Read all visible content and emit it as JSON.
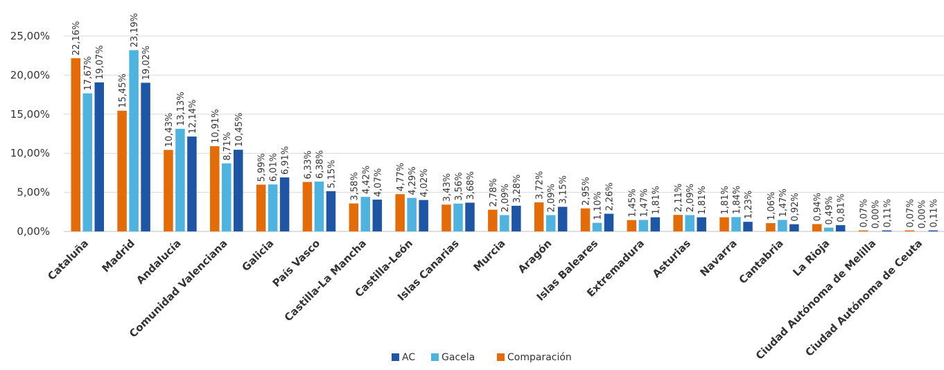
{
  "chart_data": {
    "type": "bar",
    "categories": [
      "Cataluña",
      "Madrid",
      "Andalucía",
      "Comunidad Valenciana",
      "Galicia",
      "País Vasco",
      "Castilla-La Mancha",
      "Castilla-León",
      "Islas Canarias",
      "Murcia",
      "Aragón",
      "Islas Baleares",
      "Extremadura",
      "Asturias",
      "Navarra",
      "Cantabria",
      "La Rioja",
      "Ciudad Autónoma  de Melilla",
      "Ciudad Autónoma de Ceuta"
    ],
    "series": [
      {
        "name": "Comparación",
        "color": "#e36c09",
        "values": [
          22.16,
          15.45,
          10.43,
          10.91,
          5.99,
          6.33,
          3.58,
          4.77,
          3.43,
          2.78,
          3.72,
          2.95,
          1.45,
          2.11,
          1.81,
          1.06,
          0.94,
          0.07,
          0.07
        ],
        "labels": [
          "22,16%",
          "15,45%",
          "10,43%",
          "10,91%",
          "5,99%",
          "6,33%",
          "3,58%",
          "4,77%",
          "3,43%",
          "2,78%",
          "3,72%",
          "2,95%",
          "1,45%",
          "2,11%",
          "1,81%",
          "1,06%",
          "0,94%",
          "0,07%",
          "0,07%"
        ]
      },
      {
        "name": "Gacela",
        "color": "#4fb3e0",
        "values": [
          17.67,
          23.19,
          13.13,
          8.71,
          6.01,
          6.38,
          4.42,
          4.29,
          3.56,
          2.09,
          2.09,
          1.1,
          1.47,
          2.09,
          1.84,
          1.47,
          0.49,
          0.0,
          0.0
        ],
        "labels": [
          "17,67%",
          "23,19%",
          "13,13%",
          "8,71%",
          "6,01%",
          "6,38%",
          "4,42%",
          "4,29%",
          "3,56%",
          "2,09%",
          "2,09%",
          "1,10%",
          "1,47%",
          "2,09%",
          "1,84%",
          "1,47%",
          "0,49%",
          "0,00%",
          "0,00%"
        ]
      },
      {
        "name": "AC",
        "color": "#1f55a5",
        "values": [
          19.07,
          19.02,
          12.14,
          10.45,
          6.91,
          5.15,
          4.07,
          4.02,
          3.68,
          3.28,
          3.15,
          2.26,
          1.81,
          1.81,
          1.23,
          0.92,
          0.81,
          0.11,
          0.11
        ],
        "labels": [
          "19,07%",
          "19,02%",
          "12,14%",
          "10,45%",
          "6,91%",
          "5,15%",
          "4,07%",
          "4,02%",
          "3,68%",
          "3,28%",
          "3,15%",
          "2,26%",
          "1,81%",
          "1,81%",
          "1,23%",
          "0,92%",
          "0,81%",
          "0,11%",
          "0,11%"
        ]
      }
    ],
    "y_ticks": [
      0,
      5,
      10,
      15,
      20,
      25
    ],
    "y_tick_labels": [
      "0,00%",
      "5,00%",
      "10,00%",
      "15,00%",
      "20,00%",
      "25,00%"
    ],
    "ylim": [
      0,
      25
    ],
    "grid": true,
    "legend_position": "bottom",
    "legend": [
      "AC",
      "Gacela",
      "Comparación"
    ],
    "title": "",
    "xlabel": "",
    "ylabel": ""
  }
}
